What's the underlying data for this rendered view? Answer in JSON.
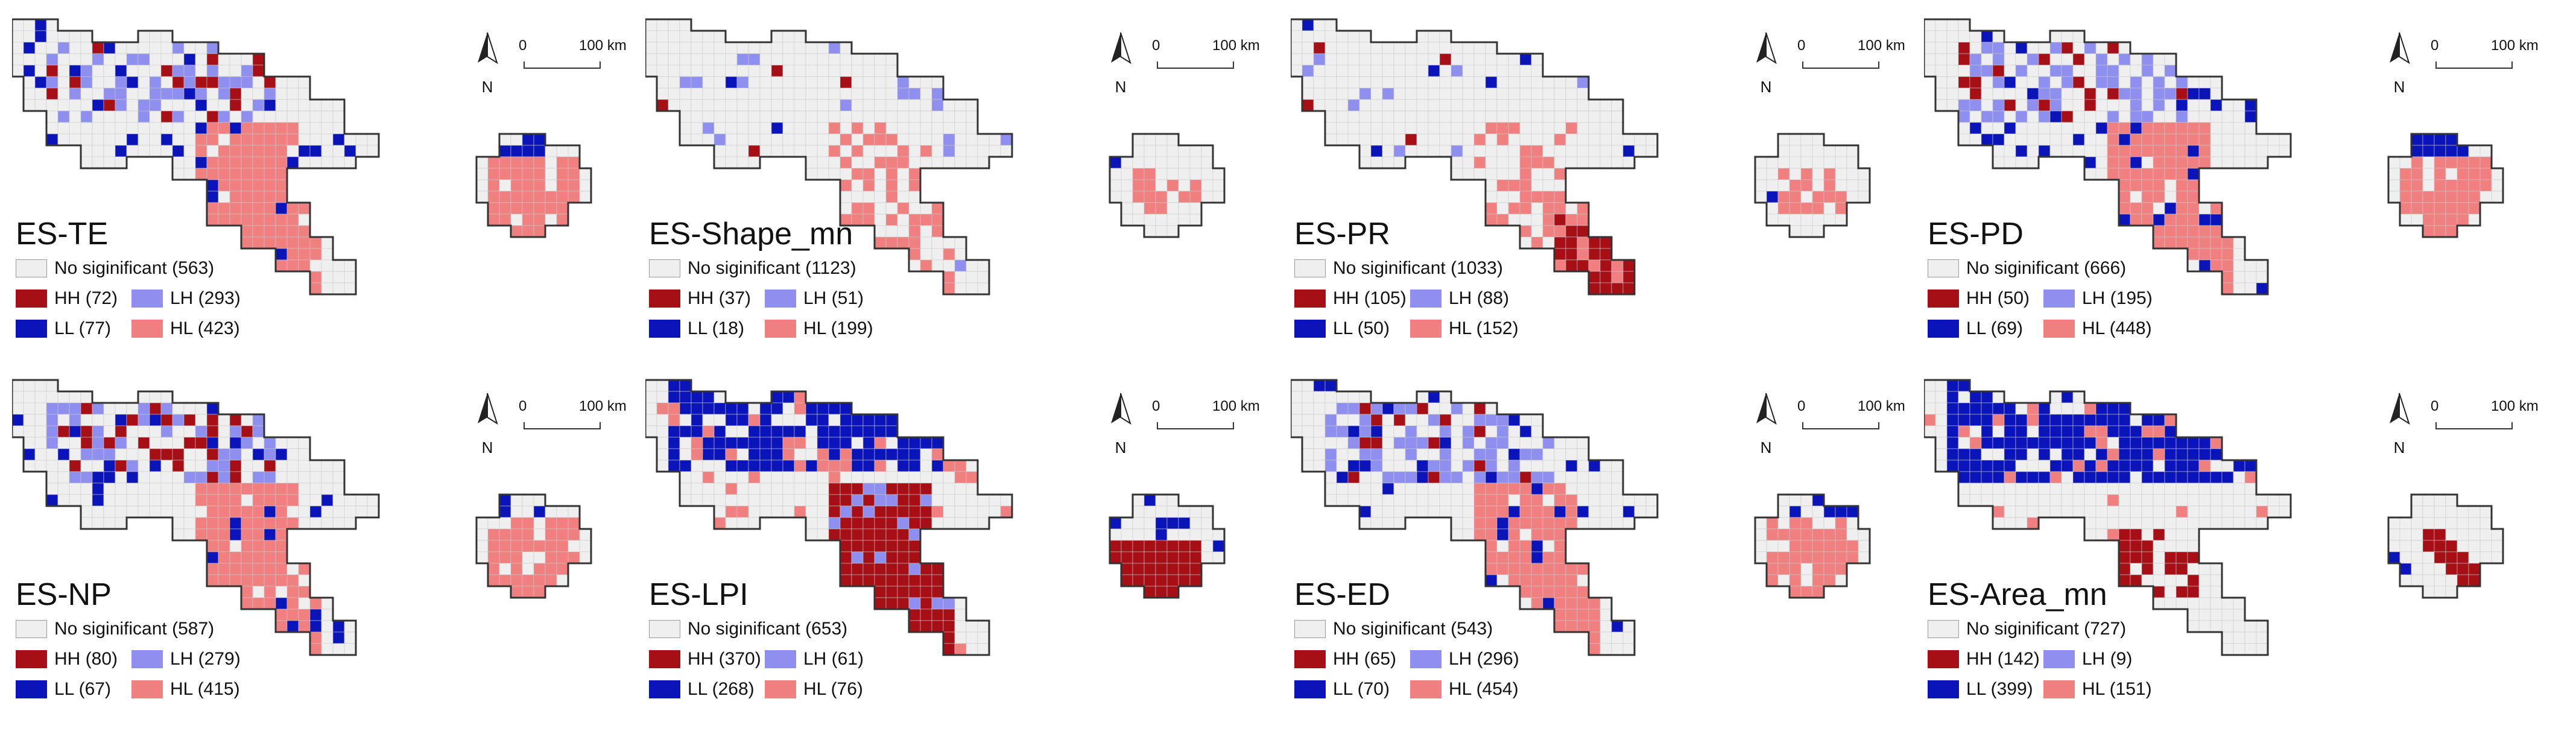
{
  "colors": {
    "ns": "#efefef",
    "HH": "#a50f15",
    "LH": "#8f8fef",
    "LL": "#0a14b8",
    "HL": "#f08080",
    "grid": "#c8c8c8",
    "outline": "#333333"
  },
  "legend_labels": {
    "HH": "HH",
    "LH": "LH",
    "LL": "LL",
    "HL": "HL",
    "ns": "No siginificant"
  },
  "north_label": "N",
  "scale_bar": {
    "zero": "0",
    "distance": "100 km"
  },
  "panels": [
    {
      "id": "ES-TE",
      "title": "ES-TE",
      "counts": {
        "ns": "No siginificant (563)",
        "HH": "HH (72)",
        "LH": "LH (293)",
        "LL": "LL (77)",
        "HL": "HL (423)"
      },
      "pattern": "te"
    },
    {
      "id": "ES-Shape_mn",
      "title": "ES-Shape_mn",
      "counts": {
        "ns": "No siginificant (1123)",
        "HH": "HH (37)",
        "LH": "LH (51)",
        "LL": "LL (18)",
        "HL": "HL (199)"
      },
      "pattern": "shape"
    },
    {
      "id": "ES-PR",
      "title": "ES-PR",
      "counts": {
        "ns": "No siginificant (1033)",
        "HH": "HH (105)",
        "LH": "LH (88)",
        "LL": "LL (50)",
        "HL": "HL (152)"
      },
      "pattern": "pr"
    },
    {
      "id": "ES-PD",
      "title": "ES-PD",
      "counts": {
        "ns": "No siginificant (666)",
        "HH": "HH (50)",
        "LH": "LH (195)",
        "LL": "LL (69)",
        "HL": "HL (448)"
      },
      "pattern": "pd"
    },
    {
      "id": "ES-NP",
      "title": "ES-NP",
      "counts": {
        "ns": "No siginificant (587)",
        "HH": "HH (80)",
        "LH": "LH (279)",
        "LL": "LL (67)",
        "HL": "HL (415)"
      },
      "pattern": "np"
    },
    {
      "id": "ES-LPI",
      "title": "ES-LPI",
      "counts": {
        "ns": "No siginificant (653)",
        "HH": "HH (370)",
        "LH": "LH (61)",
        "LL": "LL (268)",
        "HL": "HL (76)"
      },
      "pattern": "lpi"
    },
    {
      "id": "ES-ED",
      "title": "ES-ED",
      "counts": {
        "ns": "No siginificant (543)",
        "HH": "HH (65)",
        "LH": "LH (296)",
        "LL": "LL (70)",
        "HL": "HL (454)"
      },
      "pattern": "ed"
    },
    {
      "id": "ES-Area_mn",
      "title": "ES-Area_mn",
      "counts": {
        "ns": "No siginificant (727)",
        "HH": "HH (142)",
        "LH": "LH (9)",
        "LL": "LL (399)",
        "HL": "HL (151)"
      },
      "pattern": "area"
    }
  ]
}
